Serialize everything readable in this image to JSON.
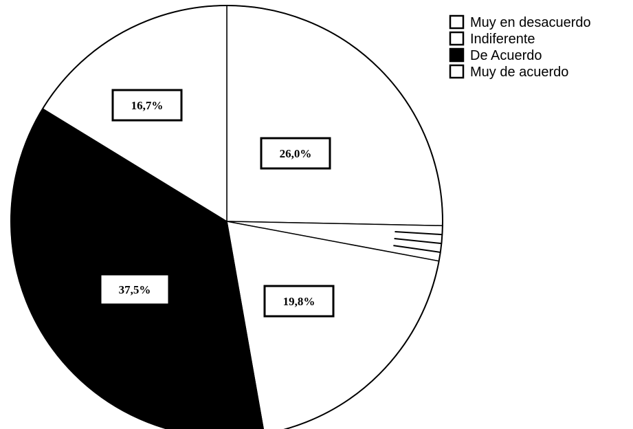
{
  "chart_data": {
    "type": "pie",
    "title": "",
    "categories": [
      "Muy en desacuerdo",
      "Indiferente",
      "De Acuerdo",
      "Muy de acuerdo"
    ],
    "slices": [
      {
        "name": "Muy en desacuerdo",
        "label": "26,0%",
        "value": 26.0,
        "color": "#ffffff"
      },
      {
        "name": "Indiferente",
        "label": "",
        "value": 2.7,
        "color": "#ffffff"
      },
      {
        "name": "Muy de acuerdo",
        "label": "19,8%",
        "value": 19.8,
        "color": "#ffffff"
      },
      {
        "name": "De Acuerdo",
        "label": "37,5%",
        "value": 37.5,
        "color": "#000000"
      },
      {
        "name": "",
        "label": "16,7%",
        "value": 16.7,
        "color": "#ffffff"
      }
    ],
    "legend": {
      "placement": "top-right",
      "entries": [
        {
          "label": "Muy en desacuerdo",
          "color": "#ffffff"
        },
        {
          "label": "Indiferente",
          "color": "#ffffff"
        },
        {
          "label": "De Acuerdo",
          "color": "#000000"
        },
        {
          "label": "Muy de acuerdo",
          "color": "#ffffff"
        }
      ]
    }
  }
}
